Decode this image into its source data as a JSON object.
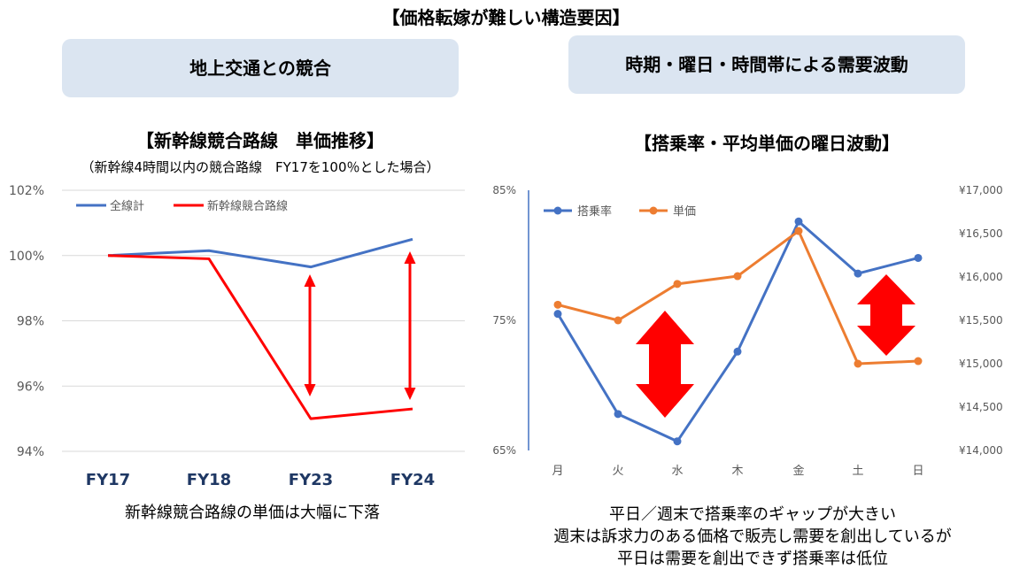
{
  "page": {
    "title": "【価格転嫁が難しい構造要因】",
    "left_box": "地上交通との競合",
    "right_box": "時期・曜日・時間帯による需要波動"
  },
  "left_chart": {
    "heading": "【新幹線競合路線　単価推移】",
    "note": "（新幹線4時間以内の競合路線　FY17を100％とした場合）",
    "caption": "新幹線競合路線の単価は大幅に下落"
  },
  "right_chart": {
    "heading": "【搭乗率・平均単価の曜日波動】",
    "caption_lines": [
      "平日／週末で搭乗率のギャップが大きい",
      "週末は訴求力のある価格で販売し需要を創出しているが",
      "平日は需要を創出できず搭乗率は低位"
    ]
  },
  "chart_data": [
    {
      "type": "line",
      "title": "【新幹線競合路線　単価推移】",
      "categories": [
        "FY17",
        "FY18",
        "FY23",
        "FY24"
      ],
      "y_ticks": [
        "94%",
        "96%",
        "98%",
        "100%",
        "102%"
      ],
      "ylim": [
        94,
        102
      ],
      "grid": true,
      "legend": "top-left",
      "series": [
        {
          "name": "全線計",
          "color": "#4472c4",
          "values": [
            100,
            100.15,
            99.65,
            100.5
          ]
        },
        {
          "name": "新幹線競合路線",
          "color": "#ff0000",
          "values": [
            100,
            99.9,
            95.0,
            95.3
          ]
        }
      ],
      "annotations": "red double-headed arrows at FY23 and FY24 between series"
    },
    {
      "type": "line",
      "title": "【搭乗率・平均単価の曜日波動】",
      "categories": [
        "月",
        "火",
        "水",
        "木",
        "金",
        "土",
        "日"
      ],
      "y_ticks": [
        "65%",
        "75%",
        "85%"
      ],
      "ylim": [
        65,
        85
      ],
      "y2_ticks": [
        "¥14,000",
        "¥14,500",
        "¥15,000",
        "¥15,500",
        "¥16,000",
        "¥16,500",
        "¥17,000"
      ],
      "y2lim": [
        14000,
        17000
      ],
      "grid": false,
      "legend": "top-left",
      "series": [
        {
          "name": "搭乗率",
          "axis": "left",
          "color": "#4472c4",
          "values": [
            75.5,
            67.8,
            65.7,
            72.6,
            82.6,
            78.6,
            79.8
          ]
        },
        {
          "name": "単価",
          "axis": "right",
          "color": "#ed7d31",
          "values": [
            15680,
            15500,
            15920,
            16010,
            16530,
            15000,
            15030
          ]
        }
      ],
      "annotations": "red double-headed block arrows between 火-水 and 土-日"
    }
  ]
}
